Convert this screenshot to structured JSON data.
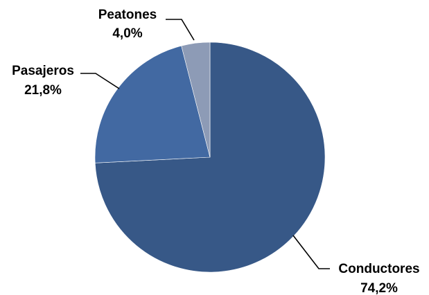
{
  "chart_data": {
    "type": "pie",
    "title": "",
    "slices": [
      {
        "label": "Conductores",
        "value": 74.2,
        "value_label": "74,2%",
        "color": "#375887"
      },
      {
        "label": "Pasajeros",
        "value": 21.8,
        "value_label": "21,8%",
        "color": "#4269a2"
      },
      {
        "label": "Peatones",
        "value": 4.0,
        "value_label": "4,0%",
        "color": "#8d9bb6"
      }
    ],
    "start": "top, clockwise",
    "legend": "none (labels outside slices with leader lines)"
  }
}
